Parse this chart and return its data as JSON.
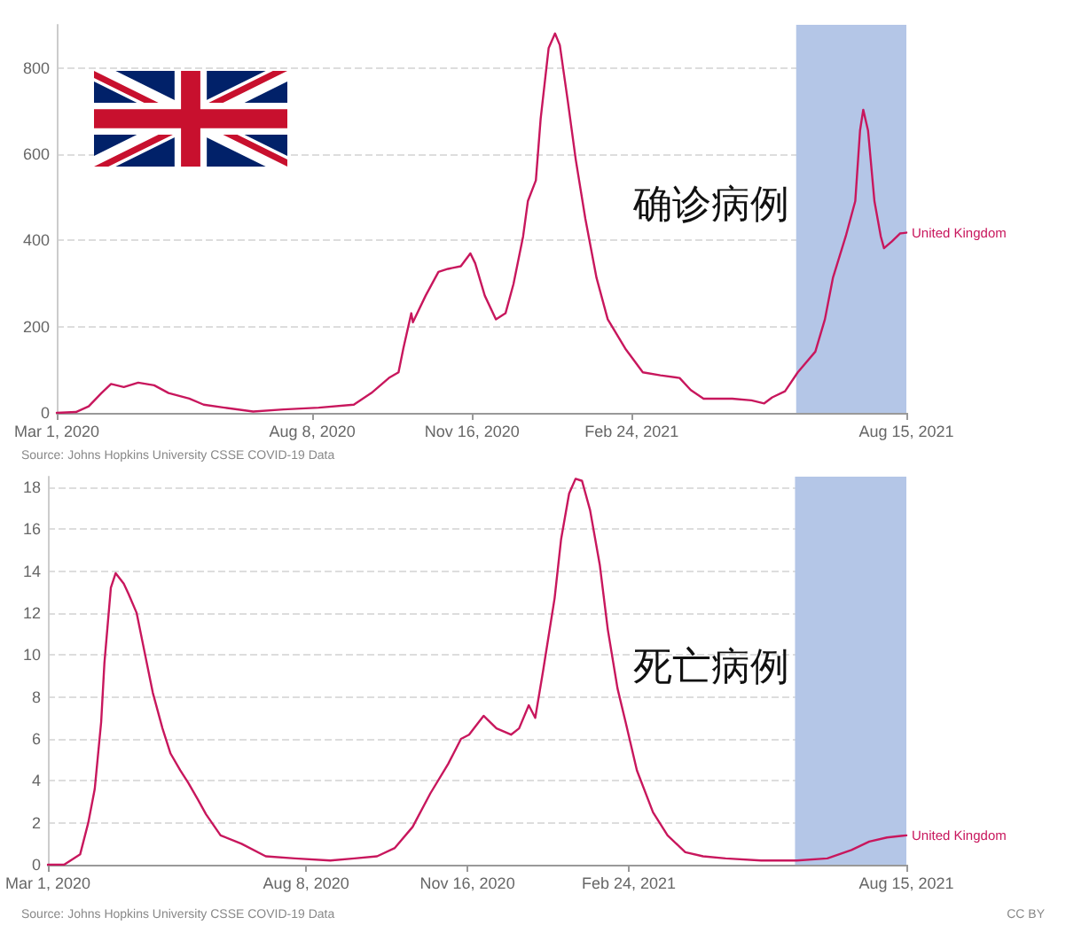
{
  "chart_data": [
    {
      "type": "line",
      "title": "确诊病例",
      "x": [
        "2020-03-01",
        "2020-03-13",
        "2020-03-21",
        "2020-03-29",
        "2020-04-04",
        "2020-04-12",
        "2020-04-21",
        "2020-05-01",
        "2020-05-10",
        "2020-05-23",
        "2020-06-01",
        "2020-06-14",
        "2020-07-02",
        "2020-07-21",
        "2020-08-12",
        "2020-09-03",
        "2020-09-14",
        "2020-09-25",
        "2020-10-01",
        "2020-10-04",
        "2020-10-09",
        "2020-10-10",
        "2020-10-18",
        "2020-10-26",
        "2020-11-01",
        "2020-11-09",
        "2020-11-15",
        "2020-11-18",
        "2020-11-24",
        "2020-12-01",
        "2020-12-07",
        "2020-12-12",
        "2020-12-18",
        "2020-12-21",
        "2020-12-26",
        "2020-12-29",
        "2021-01-03",
        "2021-01-07",
        "2021-01-10",
        "2021-01-15",
        "2021-01-20",
        "2021-01-26",
        "2021-02-02",
        "2021-02-09",
        "2021-02-20",
        "2021-03-03",
        "2021-03-14",
        "2021-03-26",
        "2021-04-02",
        "2021-04-10",
        "2021-04-28",
        "2021-05-10",
        "2021-05-18",
        "2021-05-23",
        "2021-05-31",
        "2021-06-08",
        "2021-06-19",
        "2021-06-25",
        "2021-06-30",
        "2021-07-08",
        "2021-07-14",
        "2021-07-17",
        "2021-07-19",
        "2021-07-22",
        "2021-07-26",
        "2021-07-30",
        "2021-08-01",
        "2021-08-06",
        "2021-08-11",
        "2021-08-15"
      ],
      "series": [
        {
          "name": "United Kingdom",
          "color": "#c8175d",
          "values": [
            0,
            2,
            15,
            46,
            67,
            60,
            70,
            64,
            46,
            33,
            19,
            12,
            3,
            8,
            12,
            19,
            46,
            81,
            94,
            149,
            231,
            210,
            272,
            327,
            334,
            340,
            370,
            347,
            272,
            217,
            231,
            299,
            409,
            491,
            539,
            682,
            846,
            880,
            853,
            723,
            587,
            450,
            313,
            217,
            149,
            94,
            87,
            81,
            53,
            33,
            33,
            29,
            22,
            36,
            50,
            94,
            142,
            217,
            313,
            409,
            491,
            655,
            703,
            655,
            491,
            409,
            382,
            398,
            416,
            418
          ]
        }
      ],
      "xlim": [
        "2020-03-01",
        "2021-08-15"
      ],
      "xticks": [
        {
          "value": "2020-03-01",
          "label": "Mar 1, 2020"
        },
        {
          "value": "2020-08-08",
          "label": "Aug 8, 2020"
        },
        {
          "value": "2020-11-16",
          "label": "Nov 16, 2020"
        },
        {
          "value": "2021-02-24",
          "label": "Feb 24, 2021"
        },
        {
          "value": "2021-08-15",
          "label": "Aug 15, 2021"
        }
      ],
      "ylim": [
        0,
        900
      ],
      "yticks": [
        0,
        200,
        400,
        600,
        800
      ],
      "grid": "y",
      "marker": "none",
      "line_style": "solid",
      "bands": [
        {
          "axis": "x",
          "from": "2021-06-07",
          "to": "2021-08-15",
          "color": "#b4c6e7"
        }
      ],
      "annotations": [
        "Source: Johns Hopkins University CSSE COVID-19 Data"
      ]
    },
    {
      "type": "line",
      "title": "死亡病例",
      "x": [
        "2020-03-01",
        "2020-03-11",
        "2020-03-21",
        "2020-03-26",
        "2020-03-30",
        "2020-04-03",
        "2020-04-05",
        "2020-04-09",
        "2020-04-12",
        "2020-04-17",
        "2020-04-20",
        "2020-04-25",
        "2020-04-30",
        "2020-05-05",
        "2020-05-11",
        "2020-05-16",
        "2020-05-22",
        "2020-05-27",
        "2020-06-02",
        "2020-06-07",
        "2020-06-16",
        "2020-06-29",
        "2020-07-14",
        "2020-08-01",
        "2020-08-23",
        "2020-09-07",
        "2020-09-21",
        "2020-10-02",
        "2020-10-13",
        "2020-10-24",
        "2020-11-04",
        "2020-11-12",
        "2020-11-17",
        "2020-11-21",
        "2020-11-26",
        "2020-12-04",
        "2020-12-13",
        "2020-12-18",
        "2020-12-24",
        "2020-12-28",
        "2021-01-02",
        "2021-01-09",
        "2021-01-13",
        "2021-01-18",
        "2021-01-22",
        "2021-01-26",
        "2021-01-31",
        "2021-02-06",
        "2021-02-11",
        "2021-02-17",
        "2021-02-22",
        "2021-03-01",
        "2021-03-11",
        "2021-03-20",
        "2021-03-31",
        "2021-04-11",
        "2021-04-25",
        "2021-05-17",
        "2021-06-08",
        "2021-06-27",
        "2021-07-12",
        "2021-07-23",
        "2021-08-03",
        "2021-08-15"
      ],
      "series": [
        {
          "name": "United Kingdom",
          "color": "#c8175d",
          "values": [
            0,
            0,
            0.5,
            2,
            3.6,
            6.8,
            9.6,
            13.2,
            13.9,
            13.4,
            12.9,
            12,
            10.1,
            8.2,
            6.5,
            5.3,
            4.5,
            3.9,
            3.1,
            2.4,
            1.4,
            1,
            0.4,
            0.3,
            0.2,
            0.3,
            0.4,
            0.8,
            1.8,
            3.4,
            4.8,
            6,
            6.2,
            6.6,
            7.1,
            6.5,
            6.2,
            6.5,
            7.6,
            7,
            9.3,
            12.7,
            15.5,
            17.7,
            18.4,
            18.3,
            16.9,
            14.3,
            11.2,
            8.4,
            6.8,
            4.5,
            2.5,
            1.4,
            0.6,
            0.4,
            0.3,
            0.2,
            0.2,
            0.3,
            0.7,
            1.1,
            1.3,
            1.4
          ]
        }
      ],
      "xlim": [
        "2020-03-01",
        "2021-08-15"
      ],
      "xticks": [
        {
          "value": "2020-03-01",
          "label": "Mar 1, 2020"
        },
        {
          "value": "2020-08-08",
          "label": "Aug 8, 2020"
        },
        {
          "value": "2020-11-16",
          "label": "Nov 16, 2020"
        },
        {
          "value": "2021-02-24",
          "label": "Feb 24, 2021"
        },
        {
          "value": "2021-08-15",
          "label": "Aug 15, 2021"
        }
      ],
      "ylim": [
        0,
        18.5
      ],
      "yticks": [
        0,
        2,
        4,
        6,
        8,
        10,
        12,
        14,
        16,
        18
      ],
      "grid": "y",
      "marker": "none",
      "line_style": "solid",
      "bands": [
        {
          "axis": "x",
          "from": "2021-06-07",
          "to": "2021-08-15",
          "color": "#b4c6e7"
        }
      ],
      "annotations": [
        "Source: Johns Hopkins University CSSE COVID-19 Data",
        "CC BY"
      ]
    }
  ]
}
